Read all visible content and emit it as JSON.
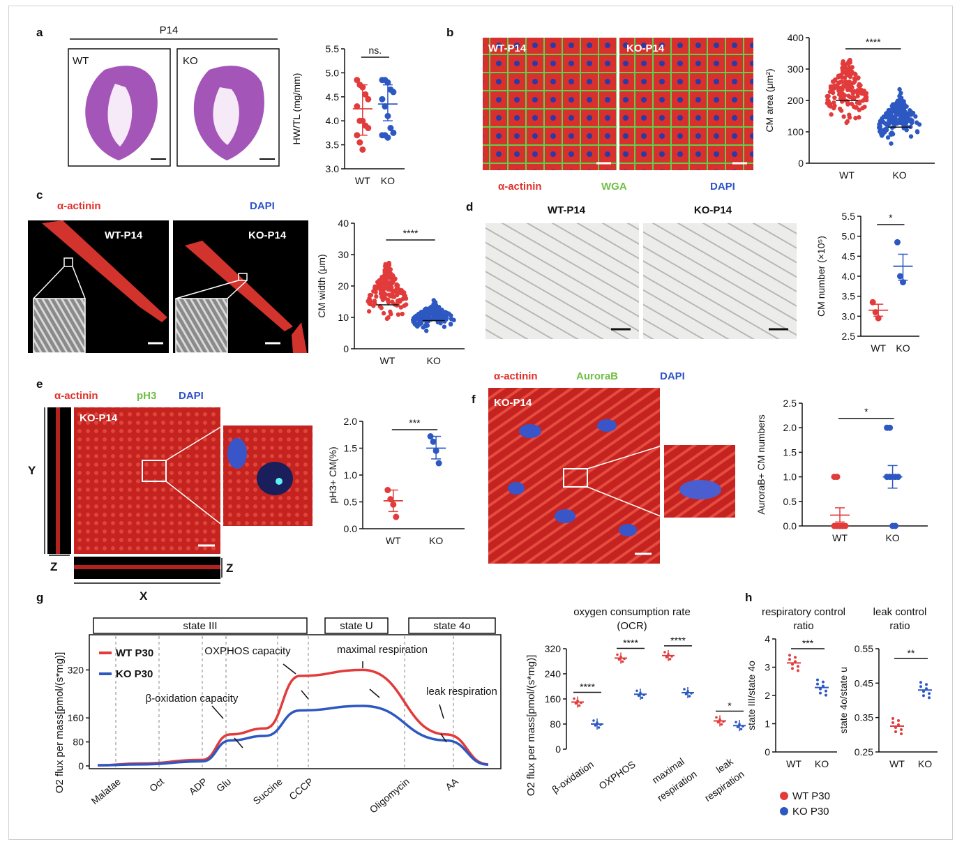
{
  "panel_letters": [
    "a",
    "b",
    "c",
    "d",
    "e",
    "f",
    "g",
    "h"
  ],
  "panel_a": {
    "group_label": "P14",
    "wt_label": "WT",
    "ko_label": "KO",
    "chart": {
      "type": "scatter",
      "ylabel": "HW/TL (mg/mm)",
      "ylim": [
        3.0,
        5.5
      ],
      "yticks": [
        "3.0",
        "3.5",
        "4.0",
        "4.5",
        "5.0",
        "5.5"
      ],
      "categories": [
        "WT",
        "KO"
      ],
      "significance": "ns.",
      "series": [
        {
          "name": "WT",
          "mean": 4.25,
          "sem_low": 3.7,
          "sem_high": 4.75,
          "points": [
            4.85,
            4.75,
            4.7,
            4.55,
            4.45,
            4.3,
            4.0,
            4.0,
            3.9,
            3.85,
            3.7,
            3.55,
            3.4
          ]
        },
        {
          "name": "KO",
          "mean": 4.35,
          "sem_low": 4.0,
          "sem_high": 4.75,
          "points": [
            4.85,
            4.85,
            4.8,
            4.65,
            4.6,
            4.45,
            4.3,
            4.1,
            3.85,
            3.75,
            3.7,
            3.7,
            3.65
          ]
        }
      ]
    }
  },
  "panel_b": {
    "img_wt": "WT-P14",
    "img_ko": "KO-P14",
    "stain_1": "α-actinin",
    "stain_2": "WGA",
    "stain_3": "DAPI",
    "chart": {
      "type": "scatter",
      "ylabel": "CM area (μm²)",
      "ylim": [
        0,
        400
      ],
      "yticks": [
        "0",
        "100",
        "200",
        "300",
        "400"
      ],
      "categories": [
        "WT",
        "KO"
      ],
      "significance": "****",
      "series": [
        {
          "name": "WT",
          "center": 200,
          "spread": [
            100,
            370
          ],
          "color": "#e23b3b"
        },
        {
          "name": "KO",
          "center": 115,
          "spread": [
            50,
            245
          ],
          "color": "#2d58c2"
        }
      ]
    }
  },
  "panel_c": {
    "stain_1": "α-actinin",
    "stain_2": "DAPI",
    "img_wt": "WT-P14",
    "img_ko": "KO-P14",
    "chart": {
      "type": "scatter",
      "ylabel": "CM width (μm)",
      "ylim": [
        0,
        40
      ],
      "yticks": [
        "0",
        "10",
        "20",
        "30",
        "40"
      ],
      "categories": [
        "WT",
        "KO"
      ],
      "significance": "****",
      "series": [
        {
          "name": "WT",
          "center": 14,
          "spread": [
            7,
            31
          ],
          "color": "#e23b3b"
        },
        {
          "name": "KO",
          "center": 9,
          "spread": [
            5,
            16
          ],
          "color": "#2d58c2"
        }
      ]
    }
  },
  "panel_d": {
    "img_wt": "WT-P14",
    "img_ko": "KO-P14",
    "chart": {
      "type": "scatter",
      "ylabel": "CM number (×10⁵)",
      "ylim": [
        2.5,
        5.5
      ],
      "yticks": [
        "2.5",
        "3.0",
        "3.5",
        "4.0",
        "4.5",
        "5.0",
        "5.5"
      ],
      "categories": [
        "WT",
        "KO"
      ],
      "significance": "*",
      "series": [
        {
          "name": "WT",
          "mean": 3.15,
          "sem_low": 3.0,
          "sem_high": 3.3,
          "points": [
            3.35,
            3.1,
            2.95
          ]
        },
        {
          "name": "KO",
          "mean": 4.25,
          "sem_low": 3.9,
          "sem_high": 4.55,
          "points": [
            4.85,
            4.0,
            3.85
          ]
        }
      ]
    }
  },
  "panel_e": {
    "stain_1": "α-actinin",
    "stain_2": "pH3",
    "stain_3": "DAPI",
    "img_label": "KO-P14",
    "axis_y": "Y",
    "axis_z": "Z",
    "axis_x": "X",
    "chart": {
      "type": "scatter",
      "ylabel": "pH3+ CM(%)",
      "ylim": [
        0.0,
        2.0
      ],
      "yticks": [
        "0.0",
        "0.5",
        "1.0",
        "1.5",
        "2.0"
      ],
      "categories": [
        "WT",
        "KO"
      ],
      "significance": "***",
      "series": [
        {
          "name": "WT",
          "mean": 0.52,
          "sem_low": 0.32,
          "sem_high": 0.72,
          "points": [
            0.72,
            0.55,
            0.45,
            0.22
          ]
        },
        {
          "name": "KO",
          "mean": 1.5,
          "sem_low": 1.3,
          "sem_high": 1.72,
          "points": [
            1.72,
            1.62,
            1.45,
            1.22
          ]
        }
      ]
    }
  },
  "panel_f": {
    "stain_1": "α-actinin",
    "stain_2": "AuroraB",
    "stain_3": "DAPI",
    "img_label": "KO-P14",
    "chart": {
      "type": "scatter",
      "ylabel": "AuroraB+ CM numbers",
      "ylim": [
        0.0,
        2.5
      ],
      "yticks": [
        "0.0",
        "0.5",
        "1.0",
        "1.5",
        "2.0",
        "2.5"
      ],
      "categories": [
        "WT",
        "KO"
      ],
      "significance": "*",
      "series": [
        {
          "name": "WT",
          "mean": 0.22,
          "sem_low": 0.08,
          "sem_high": 0.37,
          "points": [
            1,
            1,
            0,
            0,
            0,
            0,
            0,
            0,
            0
          ]
        },
        {
          "name": "KO",
          "mean": 1.0,
          "sem_low": 0.77,
          "sem_high": 1.23,
          "points": [
            2,
            2,
            1,
            1,
            1,
            1,
            1,
            0,
            0
          ]
        }
      ]
    }
  },
  "panel_g": {
    "ylabel": "O2 flux per mass[pmol/(s*mg)]",
    "yticks": [
      "0",
      "80",
      "160",
      "320"
    ],
    "state_boxes": [
      "state III",
      "state U",
      "state 4o"
    ],
    "legend": [
      "WT P30",
      "KO P30"
    ],
    "annotations": [
      "OXPHOS capacity",
      "maximal respiration",
      "β-oxidation capacity",
      "leak respiration"
    ],
    "xlabels": [
      "Malatae",
      "Oct",
      "ADP",
      "Glu",
      "Succine",
      "CCCP",
      "Oligomycin",
      "AA"
    ],
    "chart_data": {
      "type": "line",
      "series": [
        {
          "name": "WT P30",
          "color": "#e23b3b",
          "values": [
            2,
            8,
            20,
            105,
            125,
            300,
            320,
            105,
            5
          ]
        },
        {
          "name": "KO P30",
          "color": "#2d58c2",
          "values": [
            2,
            5,
            15,
            85,
            100,
            185,
            200,
            85,
            4
          ]
        }
      ]
    }
  },
  "ocr": {
    "title_1": "oxygen consumption rate",
    "title_2": "(OCR)",
    "ylabel": "O2 flux per mass[pmol/(s*mg)]",
    "yticks": [
      "0",
      "80",
      "160",
      "240",
      "320"
    ],
    "ylim": [
      0,
      320
    ],
    "categories": [
      "β-oxidation",
      "OXPHOS",
      "maximal",
      "respiration",
      "leak",
      "respiration"
    ],
    "sig": [
      "****",
      "****",
      "****",
      "*"
    ],
    "chart_data": {
      "type": "scatter",
      "groups": [
        {
          "name": "β-oxidation",
          "wt": 150,
          "ko": 80
        },
        {
          "name": "OXPHOS",
          "wt": 290,
          "ko": 175
        },
        {
          "name": "maximal respiration",
          "wt": 298,
          "ko": 180
        },
        {
          "name": "leak respiration",
          "wt": 90,
          "ko": 75
        }
      ]
    }
  },
  "panel_h": {
    "rcr_title_1": "respiratory control",
    "rcr_title_2": "ratio",
    "rcr_ylabel": "state III/state 4o",
    "rcr_yticks": [
      "0",
      "1",
      "2",
      "3",
      "4"
    ],
    "rcr_sig": "***",
    "lcr_title_1": "leak control",
    "lcr_title_2": "ratio",
    "lcr_ylabel": "state 4o/state u",
    "lcr_yticks": [
      "0.25",
      "0.35",
      "0.45",
      "0.55"
    ],
    "lcr_sig": "**",
    "categories": [
      "WT",
      "KO"
    ],
    "legend": [
      "WT P30",
      "KO P30"
    ],
    "chart_data": {
      "type": "scatter",
      "rcr": {
        "wt_mean": 3.15,
        "ko_mean": 2.28
      },
      "lcr": {
        "wt_mean": 0.325,
        "ko_mean": 0.43
      }
    }
  }
}
